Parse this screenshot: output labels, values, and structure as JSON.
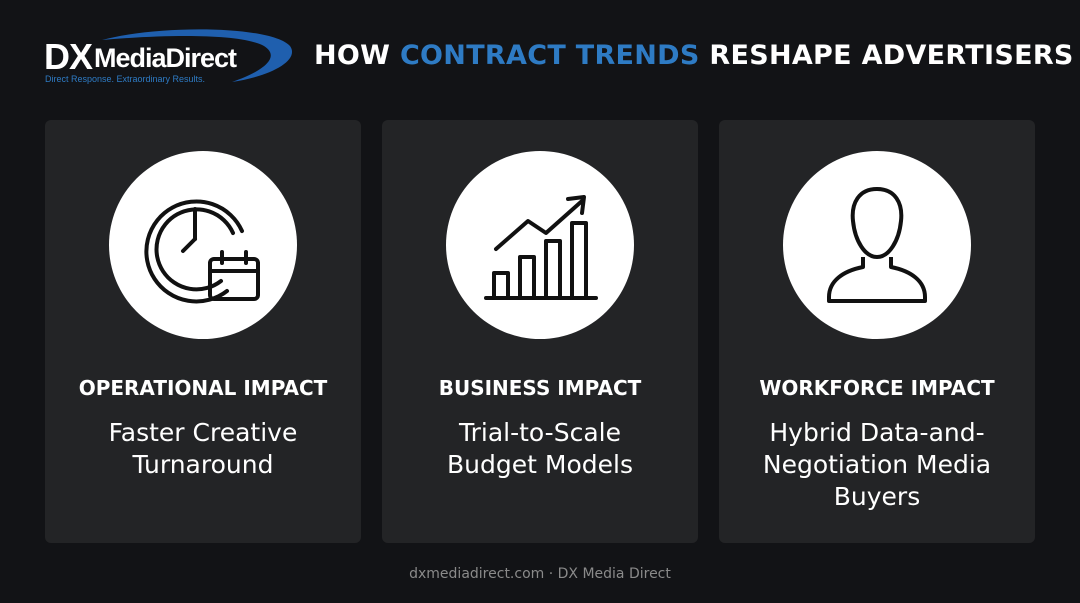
{
  "header": {
    "logo": {
      "mark": "DX",
      "name": "MediaDirect",
      "tagline": "Direct Response. Extraordinary Results."
    },
    "title": {
      "before": "HOW",
      "highlight": "CONTRACT TRENDS",
      "after": "RESHAPE ADVERTISERS"
    }
  },
  "cards": [
    {
      "heading": "OPERATIONAL IMPACT",
      "text": "Faster Creative Turnaround"
    },
    {
      "heading": "BUSINESS IMPACT",
      "text": "Trial-to-Scale Budget Models"
    },
    {
      "heading": "WORKFORCE IMPACT",
      "text": "Hybrid Data-and-Negotiation Media Buyers"
    }
  ],
  "footer": "dxmediadirect.com · DX Media Direct"
}
